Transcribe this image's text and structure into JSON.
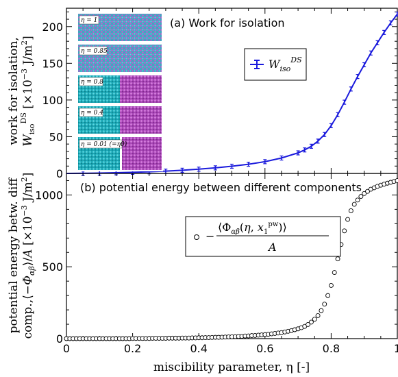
{
  "xlabel": "miscibility parameter, η [-]",
  "chart_data": [
    {
      "type": "line",
      "panel": "(a)",
      "title": "(a) Work for isolation",
      "ylabel_line1": "work for isolation,",
      "ylabel_line2": "W_iso^DS [×10^-3 J/m^2]",
      "xlim": [
        0,
        1
      ],
      "ylim": [
        0,
        225
      ],
      "x_ticks": [
        0,
        0.2,
        0.4,
        0.6,
        0.8,
        1
      ],
      "x_tick_labels": [
        "0",
        "0.2",
        "0.4",
        "0.6",
        "0.8",
        "1"
      ],
      "y_ticks": [
        0,
        50,
        100,
        150,
        200
      ],
      "y_tick_labels": [
        "0",
        "50",
        "100",
        "150",
        "200"
      ],
      "grid": false,
      "legend_position": "center-right",
      "series": [
        {
          "name": "W_iso^DS",
          "color": "#1a1adc",
          "marker": "errorbar",
          "x": [
            0,
            0.05,
            0.1,
            0.15,
            0.2,
            0.25,
            0.3,
            0.35,
            0.4,
            0.45,
            0.5,
            0.55,
            0.6,
            0.65,
            0.7,
            0.72,
            0.74,
            0.76,
            0.78,
            0.8,
            0.82,
            0.84,
            0.86,
            0.88,
            0.9,
            0.92,
            0.94,
            0.96,
            0.98,
            1.0
          ],
          "y": [
            0,
            0.2,
            0.5,
            0.9,
            1.5,
            2.2,
            3.1,
            4.3,
            5.8,
            7.6,
            9.8,
            12.5,
            16,
            21,
            28,
            32,
            37,
            44,
            53,
            65,
            80,
            97,
            115,
            132,
            148,
            164,
            178,
            192,
            205,
            217
          ]
        }
      ],
      "inset_labels": [
        "η = 1",
        "η = 0.85",
        "η = 0.8",
        "η = 0.4",
        "η = 0.01 (=η0)"
      ]
    },
    {
      "type": "scatter",
      "panel": "(b)",
      "title": "(b) potential energy between different components",
      "ylabel_line1": "potential energy betw. diff",
      "ylabel_line2": "comp.,⟨−Φαβ⟩/A [×10^-3 J/m^2]",
      "xlim": [
        0,
        1
      ],
      "ylim": [
        0,
        1150
      ],
      "x_ticks": [
        0,
        0.2,
        0.4,
        0.6,
        0.8,
        1
      ],
      "x_tick_labels": [
        "0",
        "0.2",
        "0.4",
        "0.6",
        "0.8",
        "1"
      ],
      "y_ticks": [
        0,
        500,
        1000
      ],
      "y_tick_labels": [
        "0",
        "500",
        "1000"
      ],
      "grid": false,
      "legend_position": "upper-middle",
      "series": [
        {
          "name": "−⟨Φαβ(η, x1^pw)⟩ / A",
          "color": "#000000",
          "marker": "open-circle",
          "x": [
            0,
            0.01,
            0.02,
            0.03,
            0.04,
            0.05,
            0.06,
            0.07,
            0.08,
            0.09,
            0.1,
            0.11,
            0.12,
            0.13,
            0.14,
            0.15,
            0.16,
            0.17,
            0.18,
            0.19,
            0.2,
            0.21,
            0.22,
            0.23,
            0.24,
            0.25,
            0.26,
            0.27,
            0.28,
            0.29,
            0.3,
            0.31,
            0.32,
            0.33,
            0.34,
            0.35,
            0.36,
            0.37,
            0.38,
            0.39,
            0.4,
            0.41,
            0.42,
            0.43,
            0.44,
            0.45,
            0.46,
            0.47,
            0.48,
            0.49,
            0.5,
            0.51,
            0.52,
            0.53,
            0.54,
            0.55,
            0.56,
            0.57,
            0.58,
            0.59,
            0.6,
            0.61,
            0.62,
            0.63,
            0.64,
            0.65,
            0.66,
            0.67,
            0.68,
            0.69,
            0.7,
            0.71,
            0.72,
            0.73,
            0.74,
            0.75,
            0.76,
            0.77,
            0.78,
            0.79,
            0.8,
            0.81,
            0.82,
            0.83,
            0.84,
            0.85,
            0.86,
            0.87,
            0.88,
            0.89,
            0.9,
            0.91,
            0.92,
            0.93,
            0.94,
            0.95,
            0.96,
            0.97,
            0.98,
            0.99,
            1.0
          ],
          "y": [
            0,
            0,
            0,
            0,
            0,
            0,
            0,
            0,
            0,
            0,
            0,
            0,
            0,
            0,
            0,
            0,
            0,
            0,
            0,
            0,
            1,
            1,
            1,
            1,
            1,
            1,
            2,
            2,
            2,
            2,
            2,
            3,
            3,
            3,
            3,
            4,
            4,
            4,
            5,
            5,
            6,
            6,
            7,
            7,
            8,
            9,
            9,
            10,
            11,
            12,
            13,
            14,
            15,
            16,
            18,
            19,
            21,
            22,
            24,
            26,
            28,
            30,
            33,
            36,
            39,
            42,
            46,
            51,
            56,
            62,
            68,
            76,
            85,
            98,
            115,
            135,
            160,
            195,
            240,
            300,
            370,
            460,
            555,
            655,
            750,
            830,
            890,
            935,
            965,
            990,
            1010,
            1025,
            1040,
            1050,
            1060,
            1068,
            1075,
            1082,
            1088,
            1094,
            1100
          ]
        }
      ]
    }
  ]
}
